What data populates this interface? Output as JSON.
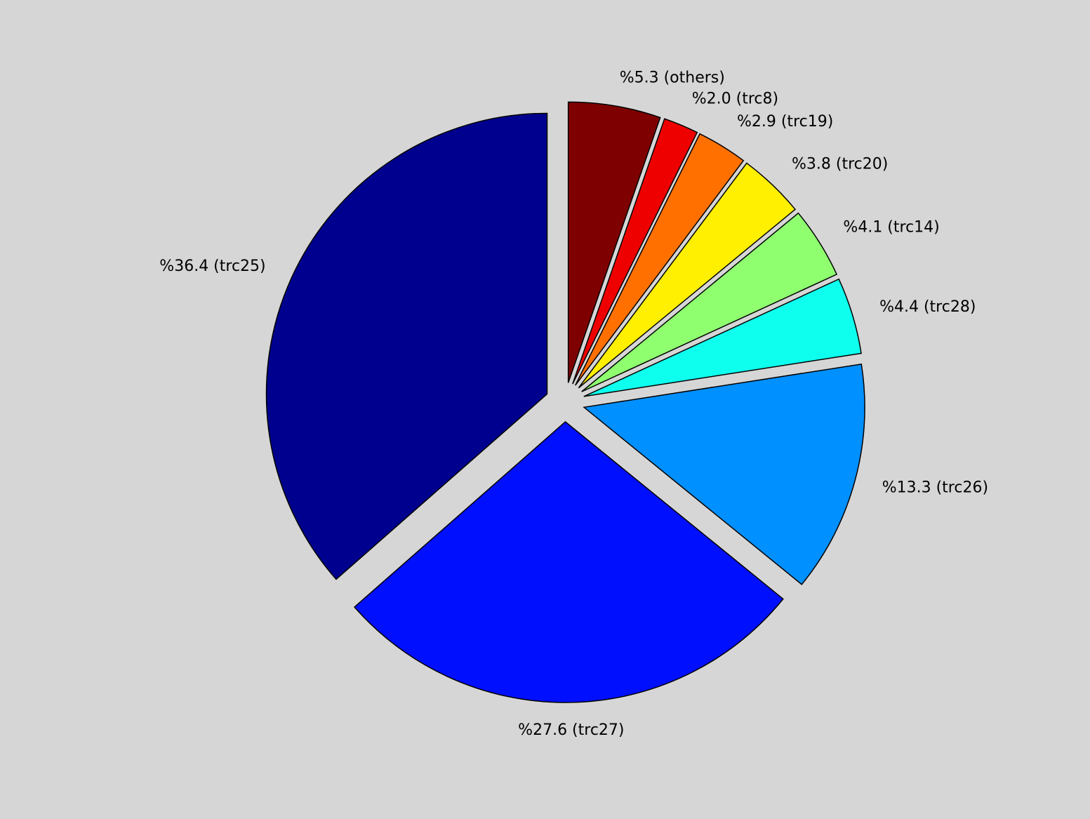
{
  "chart_data": {
    "type": "pie",
    "values": [
      36.4,
      27.6,
      13.3,
      4.4,
      4.1,
      3.8,
      2.9,
      2.0,
      5.3
    ],
    "value_labels": [
      "%36.4 (trc25)",
      "%27.6 (trc27)",
      "%13.3 (trc26)",
      "%4.4 (trc28)",
      "%4.1 (trc14)",
      "%3.8 (trc20)",
      "%2.9 (trc19)",
      "%2.0 (trc8)",
      "%5.3 (others)"
    ],
    "colors": [
      "#00008f",
      "#0010ff",
      "#0090ff",
      "#0fffef",
      "#8fff70",
      "#ffef00",
      "#ff7000",
      "#ef0000",
      "#7f0000"
    ]
  }
}
